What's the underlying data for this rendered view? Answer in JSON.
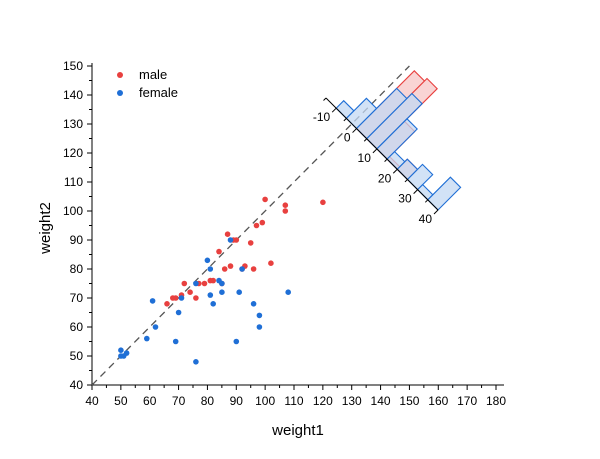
{
  "chart_data": {
    "type": "scatter",
    "title": "",
    "xlabel": "weight1",
    "ylabel": "weight2",
    "xlim": [
      40,
      180
    ],
    "ylim": [
      40,
      150
    ],
    "x_ticks": [
      "40",
      "50",
      "60",
      "70",
      "80",
      "90",
      "100",
      "110",
      "120",
      "130",
      "140",
      "150",
      "160",
      "170",
      "180"
    ],
    "y_ticks": [
      "40",
      "50",
      "60",
      "70",
      "80",
      "90",
      "100",
      "110",
      "120",
      "130",
      "140",
      "150"
    ],
    "colors": {
      "male": "#e8403f",
      "female": "#1f6fd6",
      "male_hist_fill": "#f7c6c6",
      "female_hist_fill": "#c3d8f3",
      "diagonal": "#555555"
    },
    "legend": {
      "position": "top-left",
      "entries": [
        "male",
        "female"
      ]
    },
    "diagonal_line": {
      "style": "dashed",
      "from": [
        40,
        40
      ],
      "to": [
        150,
        150
      ]
    },
    "series": [
      {
        "name": "male",
        "points": [
          [
            66,
            68
          ],
          [
            68,
            70
          ],
          [
            69,
            70
          ],
          [
            71,
            71
          ],
          [
            72,
            75
          ],
          [
            74,
            72
          ],
          [
            76,
            70
          ],
          [
            77,
            75
          ],
          [
            79,
            75
          ],
          [
            81,
            76
          ],
          [
            82,
            76
          ],
          [
            84,
            86
          ],
          [
            85,
            75
          ],
          [
            86,
            80
          ],
          [
            87,
            92
          ],
          [
            88,
            81
          ],
          [
            89,
            90
          ],
          [
            90,
            90
          ],
          [
            92,
            80
          ],
          [
            93,
            81
          ],
          [
            95,
            89
          ],
          [
            96,
            80
          ],
          [
            97,
            95
          ],
          [
            99,
            96
          ],
          [
            100,
            104
          ],
          [
            102,
            82
          ],
          [
            107,
            102
          ],
          [
            107,
            100
          ],
          [
            120,
            103
          ]
        ]
      },
      {
        "name": "female",
        "points": [
          [
            50,
            52
          ],
          [
            50,
            50
          ],
          [
            51,
            50
          ],
          [
            52,
            51
          ],
          [
            59,
            56
          ],
          [
            61,
            69
          ],
          [
            62,
            60
          ],
          [
            69,
            55
          ],
          [
            70,
            65
          ],
          [
            71,
            70
          ],
          [
            76,
            48
          ],
          [
            76,
            75
          ],
          [
            80,
            83
          ],
          [
            81,
            80
          ],
          [
            81,
            71
          ],
          [
            82,
            68
          ],
          [
            84,
            76
          ],
          [
            85,
            75
          ],
          [
            85,
            72
          ],
          [
            88,
            90
          ],
          [
            90,
            55
          ],
          [
            91,
            72
          ],
          [
            92,
            80
          ],
          [
            96,
            68
          ],
          [
            98,
            64
          ],
          [
            98,
            60
          ],
          [
            108,
            72
          ]
        ]
      }
    ],
    "difference_histogram": {
      "axis_ticks": [
        "-10",
        "0",
        "10",
        "20",
        "30",
        "40"
      ],
      "bin_width": 5,
      "male_bins": [
        {
          "from": -5,
          "to": 0,
          "count": 0
        },
        {
          "from": 0,
          "to": 5,
          "count": 23
        },
        {
          "from": 5,
          "to": 10,
          "count": 24
        },
        {
          "from": 10,
          "to": 15,
          "count": 11
        },
        {
          "from": 15,
          "to": 20,
          "count": 1
        },
        {
          "from": 20,
          "to": 25,
          "count": 4
        }
      ],
      "female_bins": [
        {
          "from": -10,
          "to": -5,
          "count": 3
        },
        {
          "from": -5,
          "to": 0,
          "count": 8
        },
        {
          "from": 0,
          "to": 5,
          "count": 16
        },
        {
          "from": 5,
          "to": 10,
          "count": 18
        },
        {
          "from": 10,
          "to": 15,
          "count": 12
        },
        {
          "from": 15,
          "to": 20,
          "count": 3
        },
        {
          "from": 20,
          "to": 25,
          "count": 4
        },
        {
          "from": 25,
          "to": 30,
          "count": 6
        },
        {
          "from": 30,
          "to": 35,
          "count": 2
        },
        {
          "from": 35,
          "to": 40,
          "count": 9
        }
      ]
    }
  }
}
